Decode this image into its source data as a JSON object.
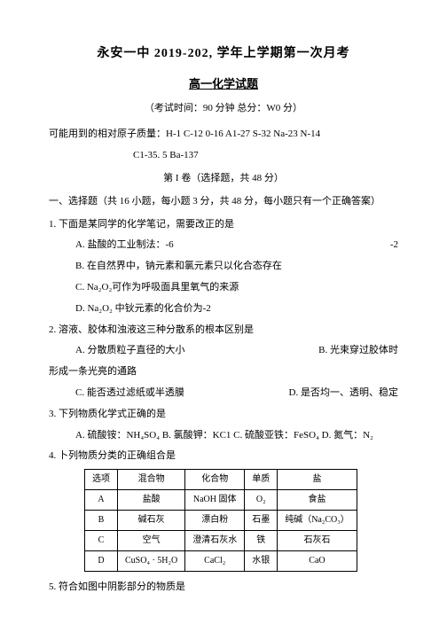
{
  "title_main": "永安一中 2019-202,  学年上学期第一次月考",
  "title_sub": "高一化学试题",
  "exam_meta": "（考试时间：90 分钟 总分：W0 分）",
  "atomic_line1": "可能用到的相对原子质量：H-1 C-12      0-16 A1-27      S-32    Na-23      N-14",
  "atomic_line2": "C1-35. 5      Ba-137",
  "section1": "第 I 卷（选择题，共 48 分）",
  "part1_heading": "一、选择题（共 16 小题，每小题 3 分，共 48 分，每小题只有一个正确答案）",
  "q1": {
    "stem": "1.      下面是某同学的化学笔记，需要改正的是",
    "a_left": "A.   盐酸的工业制法：-6",
    "a_right": "-2",
    "b": "B.   在自然界中，钠元素和氯元素只以化合态存在",
    "c": "C.   Na₂O₂可作为呼吸面具里氧气的来源",
    "d": "D.   Na₂O₂ 中钬元素的化合价为-2"
  },
  "q2": {
    "stem": "2.      溶液、胶体和浊液这三种分散系的根本区别是",
    "a": "A.   分散质粒子直径的大小",
    "b": "B. 光束穿过胶体时",
    "b2": "形成一条光亮的通路",
    "c": "C.   能否透过滤纸或半透膜",
    "d": "D. 是否均一、透明、稳定"
  },
  "q3": {
    "stem": "3.   下列物质化学式正确的是",
    "opts": "A. 硫酸铵：NH₄SO₄ B. 氯酸钾：KC1 C. 硫酸亚铁：FeSO₄ D. 氮气：N₂"
  },
  "q4": {
    "stem": "4.   卜列物质分类的正确组合是",
    "table": {
      "headers": [
        "选项",
        "混合物",
        "化合物",
        "单质",
        "盐"
      ],
      "rows": [
        [
          "A",
          "盐酸",
          "NaOH 固体",
          "O₂",
          "食盐"
        ],
        [
          "B",
          "碱石灰",
          "漂白粉",
          "石墨",
          "纯碱（Na₂CO₃）"
        ],
        [
          "C",
          "空气",
          "澄清石灰水",
          "铁",
          "石灰石"
        ],
        [
          "D",
          "CuSO₄ · 5H₂O",
          "CaCl₂",
          "水银",
          "CaO"
        ]
      ]
    }
  },
  "q5": {
    "stem": "5.   符合如图中阴影部分的物质是"
  }
}
